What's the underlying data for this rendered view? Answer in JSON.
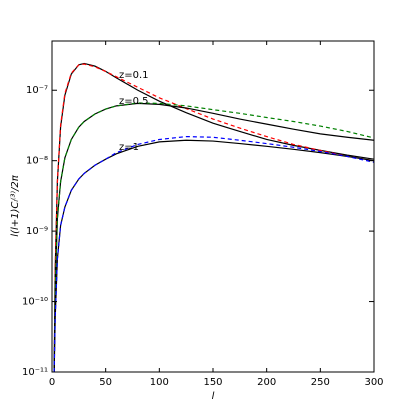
{
  "chart_data": {
    "type": "line",
    "x_label": "l",
    "y_label": "l(l+1)Cₗ⁽³⁾/2π",
    "x": [
      2,
      3,
      5,
      8,
      12,
      18,
      25,
      30,
      40,
      50,
      60,
      80,
      100,
      125,
      150,
      175,
      200,
      225,
      250,
      275,
      300
    ],
    "series": [
      {
        "color": "#000000",
        "dash": false,
        "values": [
          1e-11,
          3e-10,
          5e-09,
          3e-08,
          8.5e-08,
          1.7e-07,
          2.3e-07,
          2.4e-07,
          2.2e-07,
          1.85e-07,
          1.5e-07,
          1e-07,
          7e-08,
          4.8e-08,
          3.4e-08,
          2.6e-08,
          2e-08,
          1.65e-08,
          1.4e-08,
          1.2e-08,
          1.05e-08
        ]
      },
      {
        "color": "#ff0000",
        "dash": true,
        "values": [
          1e-11,
          3e-10,
          5e-09,
          3.2e-08,
          9e-08,
          1.75e-07,
          2.3e-07,
          2.35e-07,
          2.15e-07,
          1.85e-07,
          1.55e-07,
          1.1e-07,
          7.8e-08,
          5.5e-08,
          3.9e-08,
          2.9e-08,
          2.2e-08,
          1.7e-08,
          1.4e-08,
          1.15e-08,
          1e-08
        ]
      },
      {
        "color": "#000000",
        "dash": false,
        "values": [
          1e-11,
          1.5e-10,
          1.5e-09,
          5e-09,
          1.1e-08,
          2e-08,
          3e-08,
          3.6e-08,
          4.6e-08,
          5.4e-08,
          6e-08,
          6.5e-08,
          6.3e-08,
          5.6e-08,
          4.7e-08,
          3.9e-08,
          3.3e-08,
          2.8e-08,
          2.4e-08,
          2.15e-08,
          1.95e-08
        ]
      },
      {
        "color": "#008000",
        "dash": true,
        "values": [
          1e-11,
          1.5e-10,
          1.5e-09,
          5e-09,
          1.1e-08,
          2e-08,
          3e-08,
          3.6e-08,
          4.6e-08,
          5.4e-08,
          6e-08,
          6.6e-08,
          6.5e-08,
          6e-08,
          5.3e-08,
          4.7e-08,
          4.1e-08,
          3.6e-08,
          3.1e-08,
          2.6e-08,
          2.1e-08
        ]
      },
      {
        "color": "#000000",
        "dash": false,
        "values": [
          1e-11,
          6e-11,
          4e-10,
          1.2e-09,
          2.2e-09,
          3.8e-09,
          5.5e-09,
          6.6e-09,
          8.6e-09,
          1.05e-08,
          1.25e-08,
          1.6e-08,
          1.85e-08,
          1.95e-08,
          1.9e-08,
          1.75e-08,
          1.6e-08,
          1.45e-08,
          1.3e-08,
          1.15e-08,
          1e-08
        ]
      },
      {
        "color": "#0000ff",
        "dash": true,
        "values": [
          1e-11,
          6e-11,
          4e-10,
          1.2e-09,
          2.2e-09,
          3.8e-09,
          5.5e-09,
          6.6e-09,
          8.6e-09,
          1.05e-08,
          1.3e-08,
          1.7e-08,
          2e-08,
          2.2e-08,
          2.15e-08,
          1.95e-08,
          1.75e-08,
          1.55e-08,
          1.35e-08,
          1.15e-08,
          9.5e-09
        ]
      }
    ],
    "annotations": [
      "z=0.1",
      "z=0.5",
      "z=1"
    ],
    "xlim": [
      0,
      300
    ],
    "xticks": [
      0,
      50,
      100,
      150,
      200,
      250,
      300
    ],
    "ylim": [
      1e-11,
      5e-07
    ],
    "log_y": true,
    "yticks": [
      {
        "value": 1e-11,
        "label": "10⁻¹¹"
      },
      {
        "value": 1e-10,
        "label": "10⁻¹⁰"
      },
      {
        "value": 1e-09,
        "label": "10⁻⁹"
      },
      {
        "value": 1e-08,
        "label": "10⁻⁸"
      },
      {
        "value": 1e-07,
        "label": "10⁻⁷"
      }
    ]
  }
}
